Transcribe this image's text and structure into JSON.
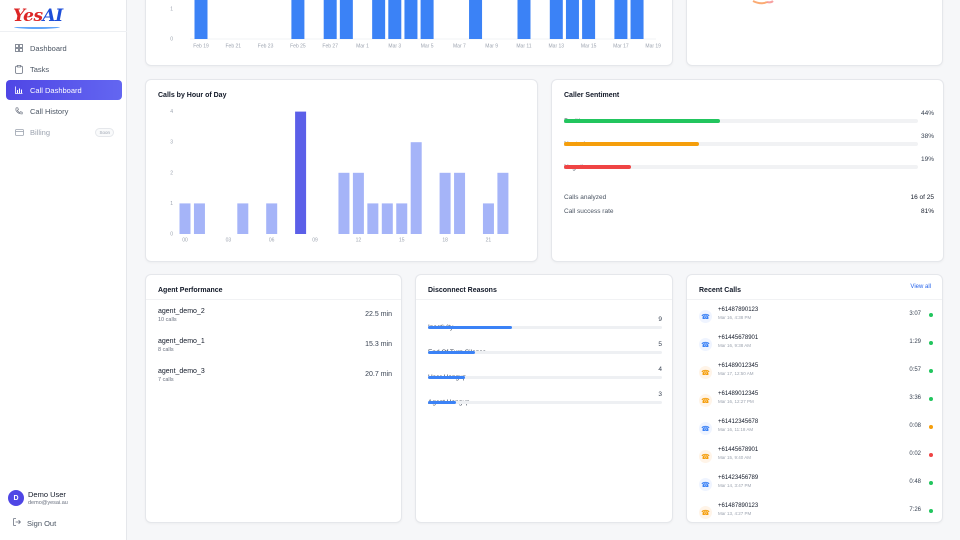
{
  "brand": {
    "part1": "Yes",
    "part2": "AI"
  },
  "nav": [
    {
      "label": "Dashboard",
      "icon": "grid-icon"
    },
    {
      "label": "Tasks",
      "icon": "clipboard-icon"
    },
    {
      "label": "Call Dashboard",
      "icon": "bar-chart-icon"
    },
    {
      "label": "Call History",
      "icon": "phone-icon"
    },
    {
      "label": "Billing",
      "icon": "card-icon",
      "badge": "Soon"
    }
  ],
  "user": {
    "avatar": "D",
    "name": "Demo User",
    "email": "demo@yesai.au",
    "signout": "Sign Out"
  },
  "daily_chart": {
    "chart_data": {
      "type": "bar",
      "x_labels": [
        "Feb 19",
        "Feb 21",
        "Feb 23",
        "Feb 25",
        "Feb 27",
        "Mar 1",
        "Mar 3",
        "Mar 5",
        "Mar 7",
        "Mar 9",
        "Mar 11",
        "Mar 13",
        "Mar 15",
        "Mar 17",
        "Mar 19"
      ],
      "y_ticks": [
        "0",
        "1"
      ],
      "bars": [
        {
          "date": "Feb 19",
          "value": 1
        },
        {
          "date": "Feb 25",
          "value": 1
        },
        {
          "date": "Feb 27",
          "value": 1
        },
        {
          "date": "Feb 28",
          "value": 1
        },
        {
          "date": "Mar 2",
          "value": 1
        },
        {
          "date": "Mar 3",
          "value": 1
        },
        {
          "date": "Mar 4",
          "value": 1
        },
        {
          "date": "Mar 5",
          "value": 1
        },
        {
          "date": "Mar 8",
          "value": 1
        },
        {
          "date": "Mar 11",
          "value": 1
        },
        {
          "date": "Mar 13",
          "value": 1
        },
        {
          "date": "Mar 14",
          "value": 1
        },
        {
          "date": "Mar 15",
          "value": 1
        },
        {
          "date": "Mar 17",
          "value": 1
        },
        {
          "date": "Mar 18",
          "value": 1
        }
      ],
      "color": "#3b82f6"
    }
  },
  "hourly": {
    "title": "Calls by Hour of Day",
    "chart_data": {
      "type": "bar",
      "hours": [
        0,
        1,
        2,
        3,
        4,
        5,
        6,
        7,
        8,
        9,
        10,
        11,
        12,
        13,
        14,
        15,
        16,
        17,
        18,
        19,
        20,
        21,
        22
      ],
      "values": [
        1,
        1,
        0,
        0,
        1,
        0,
        1,
        0,
        4,
        0,
        0,
        2,
        2,
        1,
        1,
        1,
        3,
        0,
        2,
        2,
        0,
        1,
        2
      ],
      "tick_labels": [
        {
          "hour": 0,
          "label": "00"
        },
        {
          "hour": 3,
          "label": "03"
        },
        {
          "hour": 6,
          "label": "06"
        },
        {
          "hour": 9,
          "label": "09"
        },
        {
          "hour": 12,
          "label": "12"
        },
        {
          "hour": 15,
          "label": "15"
        },
        {
          "hour": 18,
          "label": "18"
        },
        {
          "hour": 21,
          "label": "21"
        }
      ],
      "y_ticks": [
        "0",
        "1",
        "2",
        "3",
        "4"
      ],
      "ylim": [
        0,
        4
      ],
      "color": "#a5b4f8",
      "peak_color": "#5b5fe8"
    }
  },
  "sentiment": {
    "title": "Caller Sentiment",
    "rows": [
      {
        "label": "Positive",
        "pct": "44%",
        "value": 44,
        "color": "#22c55e"
      },
      {
        "label": "Neutral",
        "pct": "38%",
        "value": 38,
        "color": "#f59e0b"
      },
      {
        "label": "Negative",
        "pct": "19%",
        "value": 19,
        "color": "#ef4444"
      }
    ],
    "analyzed_label": "Calls analyzed",
    "analyzed_value": "16 of 25",
    "success_label": "Call success rate",
    "success_value": "81%"
  },
  "agents": {
    "title": "Agent Performance",
    "rows": [
      {
        "name": "agent_demo_2",
        "calls": "10 calls",
        "time": "22.5 min"
      },
      {
        "name": "agent_demo_1",
        "calls": "8 calls",
        "time": "15.3 min"
      },
      {
        "name": "agent_demo_3",
        "calls": "7 calls",
        "time": "20.7 min"
      }
    ]
  },
  "disconnect": {
    "title": "Disconnect Reasons",
    "rows": [
      {
        "label": "Inactivity",
        "value": "9",
        "n": 9
      },
      {
        "label": "End Of Turn Silence",
        "value": "5",
        "n": 5
      },
      {
        "label": "User Hangup",
        "value": "4",
        "n": 4
      },
      {
        "label": "Agent Hangup",
        "value": "3",
        "n": 3
      }
    ],
    "max": 25
  },
  "recent": {
    "title": "Recent Calls",
    "view_all": "View all",
    "calls": [
      {
        "number": "+61487890123",
        "time": "Mar 16, 4:38 PM",
        "duration": "3:07",
        "dir": "in",
        "status": "#22c55e"
      },
      {
        "number": "+61445678901",
        "time": "Mar 16, 9:38 AM",
        "duration": "1:29",
        "dir": "in",
        "status": "#22c55e"
      },
      {
        "number": "+61489012345",
        "time": "Mar 17, 12:50 AM",
        "duration": "0:57",
        "dir": "out",
        "status": "#22c55e"
      },
      {
        "number": "+61489012345",
        "time": "Mar 16, 12:27 PM",
        "duration": "3:36",
        "dir": "out",
        "status": "#22c55e"
      },
      {
        "number": "+61412345678",
        "time": "Mar 16, 11:18 AM",
        "duration": "0:08",
        "dir": "in",
        "status": "#f59e0b"
      },
      {
        "number": "+61445678901",
        "time": "Mar 15, 9:40 AM",
        "duration": "0:02",
        "dir": "out",
        "status": "#ef4444"
      },
      {
        "number": "+61423456789",
        "time": "Mar 14, 3:47 PM",
        "duration": "0:48",
        "dir": "in",
        "status": "#22c55e"
      },
      {
        "number": "+61487890123",
        "time": "Mar 13, 4:27 PM",
        "duration": "7:26",
        "dir": "out",
        "status": "#22c55e"
      }
    ]
  }
}
